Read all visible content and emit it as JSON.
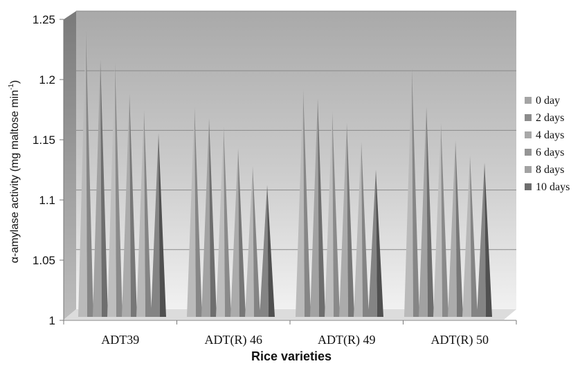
{
  "chart_data": {
    "type": "bar",
    "shape": "3d-cone",
    "categories": [
      "ADT39",
      "ADT(R) 46",
      "ADT(R) 49",
      "ADT(R) 50"
    ],
    "series": [
      {
        "name": "0 day",
        "values": [
          1.245,
          1.18,
          1.195,
          1.213
        ],
        "color": "#a4a4a4"
      },
      {
        "name": "2 days",
        "values": [
          1.22,
          1.17,
          1.187,
          1.18
        ],
        "color": "#8c8c8c"
      },
      {
        "name": "4 days",
        "values": [
          1.218,
          1.163,
          1.176,
          1.166
        ],
        "color": "#a8a8a8"
      },
      {
        "name": "6 days",
        "values": [
          1.191,
          1.144,
          1.166,
          1.151
        ],
        "color": "#959595"
      },
      {
        "name": "8 days",
        "values": [
          1.177,
          1.129,
          1.15,
          1.138
        ],
        "color": "#a2a2a2"
      },
      {
        "name": "10 days",
        "values": [
          1.157,
          1.113,
          1.126,
          1.132
        ],
        "color": "#6e6e6e"
      }
    ],
    "ylim": [
      1,
      1.25
    ],
    "yticks": [
      "1",
      "1.05",
      "1.1",
      "1.15",
      "1.2",
      "1.25"
    ],
    "ylabel_prefix": "α-amylase activity (mg maltose min",
    "ylabel_sup": "-1",
    "ylabel_suffix": ")",
    "xlabel": "Rice varieties",
    "grid": true,
    "legend_position": "right"
  }
}
